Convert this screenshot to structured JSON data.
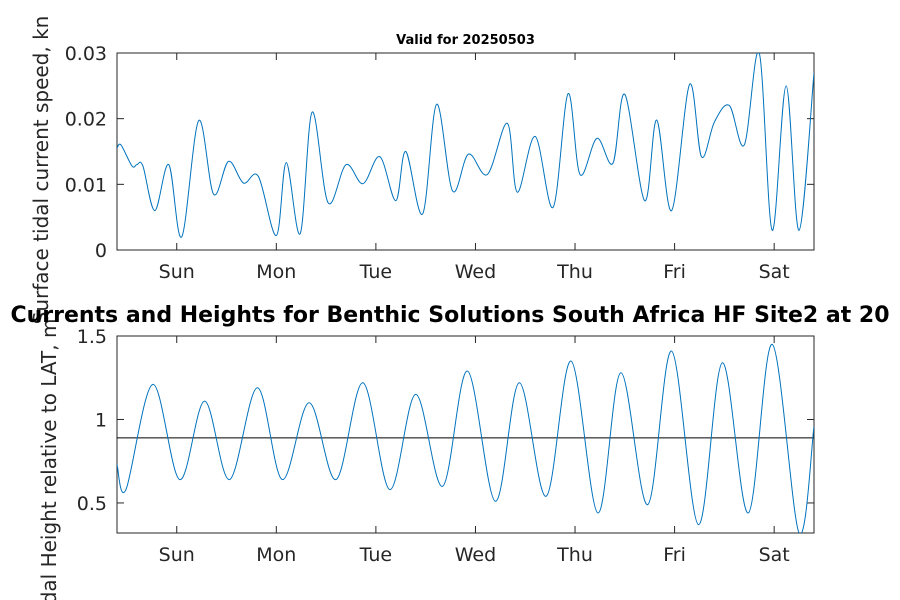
{
  "figure_title": "Currents and Heights for Benthic Solutions South Africa HF Site2 at 20",
  "colors": {
    "series": "#0072bd",
    "axis": "#262626",
    "reference": "#000000"
  },
  "chart_data": [
    {
      "type": "line",
      "title": "Valid for 20250503",
      "ylabel": "Surface tidal current speed, kn",
      "xlabel": "",
      "x_ticks": [
        "Sun",
        "Mon",
        "Tue",
        "Wed",
        "Thu",
        "Fri",
        "Sat"
      ],
      "xlim": [
        0,
        7
      ],
      "ylim": [
        0,
        0.03
      ],
      "y_ticks": [
        "0",
        "0.01",
        "0.02",
        "0.03"
      ],
      "y_tick_values": [
        0,
        0.01,
        0.02,
        0.03
      ],
      "series": [
        {
          "x": [
            0,
            0.04,
            0.15,
            0.2,
            0.26,
            0.38,
            0.52,
            0.65,
            0.82,
            0.97,
            1.12,
            1.27,
            1.42,
            1.6,
            1.7,
            1.84,
            1.96,
            2.12,
            2.3,
            2.47,
            2.64,
            2.8,
            2.9,
            3.07,
            3.21,
            3.37,
            3.53,
            3.72,
            3.92,
            4.02,
            4.2,
            4.38,
            4.53,
            4.65,
            4.82,
            4.98,
            5.1,
            5.3,
            5.42,
            5.57,
            5.75,
            5.87,
            6.0,
            6.15,
            6.32,
            6.45,
            6.58,
            6.72,
            6.85,
            7.0
          ],
          "y": [
            0.0155,
            0.016,
            0.0128,
            0.013,
            0.0128,
            0.006,
            0.013,
            0.002,
            0.0197,
            0.0085,
            0.0135,
            0.0102,
            0.0112,
            0.0022,
            0.0133,
            0.0025,
            0.021,
            0.0072,
            0.013,
            0.0101,
            0.0142,
            0.0075,
            0.015,
            0.0055,
            0.0222,
            0.009,
            0.0146,
            0.0115,
            0.0193,
            0.0088,
            0.0173,
            0.0065,
            0.0238,
            0.0115,
            0.017,
            0.0132,
            0.0237,
            0.0075,
            0.0198,
            0.006,
            0.0252,
            0.0142,
            0.0195,
            0.0148,
            0.0274,
            0.0055,
            0.0227,
            0.005,
            0.0263,
            0.0165
          ]
        }
      ],
      "y_extra": [
        0.022,
        0.016,
        0.03,
        0.003,
        0.025,
        0.003,
        0.027
      ],
      "x_extra": [
        6.15,
        6.3,
        6.45,
        6.58,
        6.72,
        6.85,
        7.0
      ]
    },
    {
      "type": "line",
      "title": "",
      "ylabel": "Tidal Height relative to LAT, m",
      "xlabel": "",
      "x_ticks": [
        "Sun",
        "Mon",
        "Tue",
        "Wed",
        "Thu",
        "Fri",
        "Sat"
      ],
      "xlim": [
        0,
        7
      ],
      "ylim": [
        0.32,
        1.5
      ],
      "y_ticks": [
        "0.5",
        "1",
        "1.5"
      ],
      "y_tick_values": [
        0.5,
        1,
        1.5
      ],
      "reference_line": 0.89,
      "series": [
        {
          "x": [
            0,
            0.09,
            0.36,
            0.63,
            0.88,
            1.13,
            1.41,
            1.66,
            1.93,
            2.2,
            2.47,
            2.74,
            3.0,
            3.27,
            3.52,
            3.8,
            4.04,
            4.31,
            4.56,
            4.83,
            5.06,
            5.33,
            5.57,
            5.84,
            6.08,
            6.34,
            6.58,
            6.85,
            7.0
          ],
          "y": [
            0.73,
            0.58,
            1.21,
            0.64,
            1.11,
            0.64,
            1.19,
            0.64,
            1.1,
            0.64,
            1.22,
            0.58,
            1.15,
            0.6,
            1.29,
            0.51,
            1.22,
            0.54,
            1.35,
            0.44,
            1.28,
            0.49,
            1.41,
            0.37,
            1.34,
            0.44,
            1.45,
            0.32,
            0.96
          ]
        }
      ]
    }
  ]
}
